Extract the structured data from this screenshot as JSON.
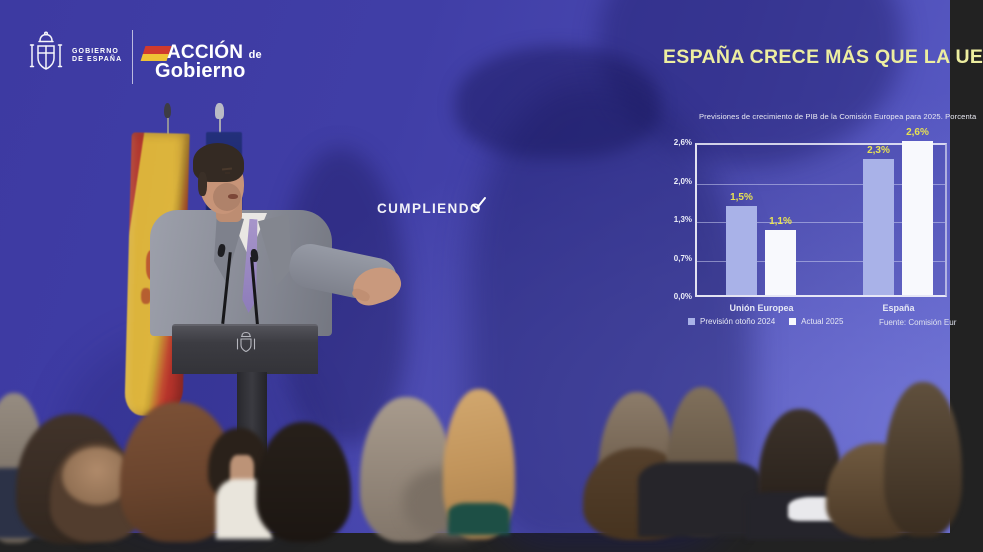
{
  "scene": {
    "description": "Press conference: speaker at a lectern in front of a blue backdrop with Spain and EU flags; audience heads in the foreground"
  },
  "branding": {
    "government": {
      "line1": "GOBIERNO",
      "line2": "DE ESPAÑA"
    },
    "program": {
      "word1": "ACCIÓN",
      "connector": "de",
      "word2": "Gobierno"
    },
    "slogan": "CUMPLIENDO"
  },
  "headline": {
    "text": "ESPAÑA CRECE MÁS QUE LA UE",
    "color": "#edeea0"
  },
  "chart_data": {
    "type": "bar",
    "title": "Previsiones de crecimiento de PIB de la Comisión Europea para 2025. Porcenta",
    "categories": [
      "Unión Europea",
      "España"
    ],
    "series": [
      {
        "name": "Previsión otoño 2024",
        "color": "#a9b2e8",
        "values": [
          1.5,
          2.3
        ]
      },
      {
        "name": "Actual 2025",
        "color": "#f8f9fd",
        "values": [
          1.1,
          2.6
        ]
      }
    ],
    "value_labels": [
      [
        "1,5%",
        "2,3%"
      ],
      [
        "1,1%",
        "2,6%"
      ]
    ],
    "y_ticks": [
      "2,6%",
      "2,0%",
      "1,3%",
      "0,7%",
      "0,0%"
    ],
    "ylim": [
      0,
      2.6
    ],
    "grid": true,
    "legend_position": "bottom-left",
    "source": "Fuente: Comisión Eur",
    "label_color": "#e8e253"
  }
}
